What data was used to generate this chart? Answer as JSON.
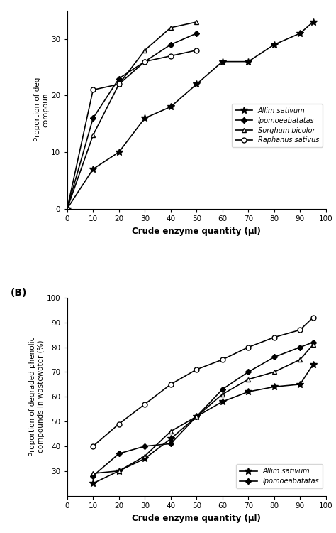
{
  "panel_A": {
    "x_allim": [
      0,
      10,
      20,
      30,
      40,
      50,
      60,
      70,
      80,
      90,
      95
    ],
    "y_allim": [
      0,
      7,
      10,
      16,
      18,
      22,
      26,
      26,
      29,
      31,
      33
    ],
    "x_ipomoea": [
      0,
      10,
      20,
      30,
      40,
      50
    ],
    "y_ipomoea": [
      0,
      16,
      23,
      26,
      29,
      31
    ],
    "x_sorghum": [
      0,
      10,
      20,
      30,
      40,
      50
    ],
    "y_sorghum": [
      0,
      13,
      22,
      28,
      32,
      33
    ],
    "x_raphanus": [
      0,
      10,
      20,
      30,
      40,
      50
    ],
    "y_raphanus": [
      0,
      21,
      22,
      26,
      27,
      28
    ],
    "xlabel": "Crude enzyme quantity (μl)",
    "ylabel_line1": "Proportion of deg",
    "ylabel_line2": "compoun",
    "ylim": [
      0,
      35
    ],
    "yticks": [
      0,
      10,
      20,
      30
    ],
    "xticks": [
      0,
      10,
      20,
      30,
      40,
      50,
      60,
      70,
      80,
      90,
      100
    ],
    "xlim": [
      0,
      100
    ],
    "legend_allim": "Allim sativum",
    "legend_ipomoea": "Ipomoeabatatas",
    "legend_sorghum": "Sorghum bicolor",
    "legend_raphanus": "Raphanus sativus"
  },
  "panel_B": {
    "x": [
      10,
      20,
      30,
      40,
      50,
      60,
      70,
      80,
      90,
      95
    ],
    "y_allim": [
      25,
      30,
      35,
      43,
      52,
      58,
      62,
      64,
      65,
      73
    ],
    "y_ipomoea": [
      28,
      37,
      40,
      41,
      52,
      63,
      70,
      76,
      80,
      82
    ],
    "y_sorghum": [
      29,
      30,
      36,
      46,
      52,
      61,
      67,
      70,
      75,
      81
    ],
    "y_raphanus": [
      40,
      49,
      57,
      65,
      71,
      75,
      80,
      84,
      87,
      92
    ],
    "xlabel": "Crude enzyme quantity (μl)",
    "ylabel": "Proportion of degraded phenolic\ncompounds in wastewater (%)",
    "ylim": [
      20,
      100
    ],
    "yticks": [
      30,
      40,
      50,
      60,
      70,
      80,
      90,
      100
    ],
    "xticks": [
      0,
      10,
      20,
      30,
      40,
      50,
      60,
      70,
      80,
      90,
      100
    ],
    "xlim": [
      0,
      100
    ],
    "legend_allim": "Allim sativum",
    "legend_ipomoea": "Ipomoeabatatas"
  },
  "figsize": [
    4.74,
    7.5
  ],
  "dpi": 100
}
